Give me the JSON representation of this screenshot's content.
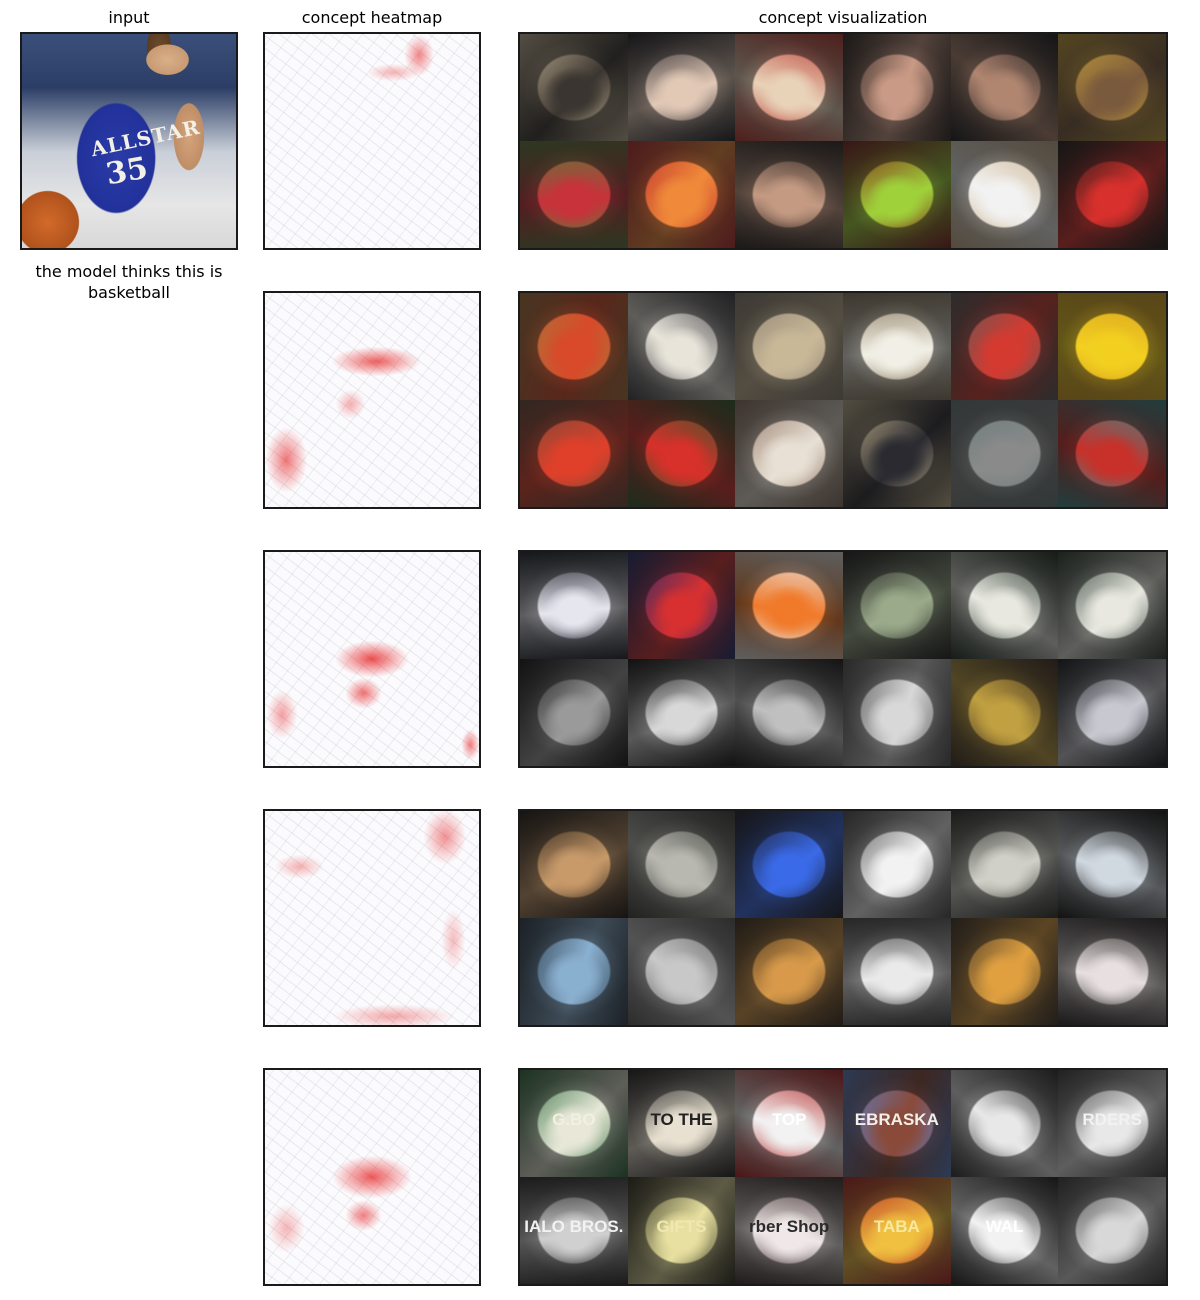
{
  "headers": {
    "input": "input",
    "heatmap": "concept heatmap",
    "visualization": "concept visualization"
  },
  "input_image": {
    "jersey_text": "ALLSTAR",
    "jersey_number": "35"
  },
  "prediction_caption": "the model thinks this is basketball",
  "concept_rows": [
    {
      "tiles": [
        {
          "colors": [
            "#c9b89a",
            "#3a3530"
          ]
        },
        {
          "colors": [
            "#1b1b22",
            "#e2c9b6"
          ]
        },
        {
          "colors": [
            "#b8342c",
            "#e8d2b8"
          ]
        },
        {
          "colors": [
            "#2c2420",
            "#c99a86"
          ]
        },
        {
          "colors": [
            "#16161a",
            "#b08670"
          ]
        },
        {
          "colors": [
            "#c9a23a",
            "#7a5a3c"
          ]
        },
        {
          "colors": [
            "#5a7a3a",
            "#c8323a"
          ]
        },
        {
          "colors": [
            "#b8282c",
            "#f08a3a"
          ]
        },
        {
          "colors": [
            "#2a2220",
            "#c49a82"
          ]
        },
        {
          "colors": [
            "#7c1a1a",
            "#9fd23a"
          ]
        },
        {
          "colors": [
            "#c9b089",
            "#f2f2f2"
          ]
        },
        {
          "colors": [
            "#141a18",
            "#d8302c"
          ]
        }
      ]
    },
    {
      "tiles": [
        {
          "colors": [
            "#a8743a",
            "#d84a2a"
          ]
        },
        {
          "colors": [
            "#3a3a40",
            "#e8e4da"
          ]
        },
        {
          "colors": [
            "#8a8070",
            "#c9b898"
          ]
        },
        {
          "colors": [
            "#8a7a60",
            "#f2f0e6"
          ]
        },
        {
          "colors": [
            "#5a5a5a",
            "#d43a30"
          ]
        },
        {
          "colors": [
            "#d9a020",
            "#f2d020"
          ]
        },
        {
          "colors": [
            "#6a4a3a",
            "#e0402a"
          ]
        },
        {
          "colors": [
            "#2a5a2a",
            "#d8302a"
          ]
        },
        {
          "colors": [
            "#8a7060",
            "#e8e0d4"
          ]
        },
        {
          "colors": [
            "#c9b890",
            "#2a2a30"
          ]
        },
        {
          "colors": [
            "#6a7a7a",
            "#8a8a8a"
          ]
        },
        {
          "colors": [
            "#3a8a8a",
            "#c8302a"
          ]
        }
      ]
    },
    {
      "tiles": [
        {
          "colors": [
            "#1a1e28",
            "#e6e6ee"
          ]
        },
        {
          "colors": [
            "#1c2a6a",
            "#d83030"
          ]
        },
        {
          "colors": [
            "#e8e8e8",
            "#f07a2a"
          ]
        },
        {
          "colors": [
            "#1a1a1a",
            "#9aaa8a"
          ]
        },
        {
          "colors": [
            "#1a2a20",
            "#e8e8e0"
          ]
        },
        {
          "colors": [
            "#2a3a30",
            "#e8e8e0"
          ]
        },
        {
          "colors": [
            "#0e0e0e",
            "#9a9a9a"
          ]
        },
        {
          "colors": [
            "#0c0c0c",
            "#d8d8d8"
          ]
        },
        {
          "colors": [
            "#141414",
            "#c0c0c0"
          ]
        },
        {
          "colors": [
            "#505050",
            "#d8d8d8"
          ]
        },
        {
          "colors": [
            "#3a2a20",
            "#c0a040"
          ]
        },
        {
          "colors": [
            "#101418",
            "#c8c8d0"
          ]
        }
      ]
    },
    {
      "tiles": [
        {
          "colors": [
            "#1a1410",
            "#c89a6a"
          ]
        },
        {
          "colors": [
            "#3a3a38",
            "#b8b8b0"
          ]
        },
        {
          "colors": [
            "#1a1a22",
            "#3a6ae8"
          ]
        },
        {
          "colors": [
            "#4a4a4a",
            "#f2f2f2"
          ]
        },
        {
          "colors": [
            "#2a2a26",
            "#d0d0c8"
          ]
        },
        {
          "colors": [
            "#101010",
            "#d0d8e0"
          ]
        },
        {
          "colors": [
            "#2a3a4a",
            "#8ab0d0"
          ]
        },
        {
          "colors": [
            "#5a5a5a",
            "#c8c8c8"
          ]
        },
        {
          "colors": [
            "#3a2a1a",
            "#d89a4a"
          ]
        },
        {
          "colors": [
            "#4a4a4a",
            "#eaeaea"
          ]
        },
        {
          "colors": [
            "#3a3026",
            "#e0a040"
          ]
        },
        {
          "colors": [
            "#2a2626",
            "#e8e0e0"
          ]
        }
      ]
    },
    {
      "tiles": [
        {
          "colors": [
            "#2a6a3a",
            "#e8e8d8"
          ],
          "text": "G.BO",
          "textColor": "#f2f0e0"
        },
        {
          "colors": [
            "#1a1a1a",
            "#e8e0d0"
          ],
          "text": "TO THE",
          "textColor": "#222222"
        },
        {
          "colors": [
            "#b01a1a",
            "#f2f2f2"
          ],
          "text": "TOP",
          "textColor": "#ffffff"
        },
        {
          "colors": [
            "#5a80c8",
            "#8a4a3a"
          ],
          "text": "EBRASKA",
          "textColor": "#f2f0e8"
        },
        {
          "colors": [
            "#2a2a2a",
            "#e8e8e8"
          ]
        },
        {
          "colors": [
            "#3a3a3a",
            "#e8e8e8"
          ],
          "text": "RDERS",
          "textColor": "#f2f2f2"
        },
        {
          "colors": [
            "#2a2a2a",
            "#d0d0d0"
          ],
          "text": "IALO BROS.",
          "textColor": "#f2f2f2"
        },
        {
          "colors": [
            "#2a2a1a",
            "#e8e0a0"
          ],
          "text": "GIFTS",
          "textColor": "#f0e8b0"
        },
        {
          "colors": [
            "#3a2a2a",
            "#f0e8e8"
          ],
          "text": "rber Shop",
          "textColor": "#2a2a2a"
        },
        {
          "colors": [
            "#b02020",
            "#f0c040"
          ],
          "text": "TABA",
          "textColor": "#f8e8a0"
        },
        {
          "colors": [
            "#1a1a1a",
            "#f2f2f2"
          ],
          "text": "WAL",
          "textColor": "#ffffff"
        },
        {
          "colors": [
            "#3a3a3a",
            "#d8d8d8"
          ]
        }
      ]
    }
  ]
}
